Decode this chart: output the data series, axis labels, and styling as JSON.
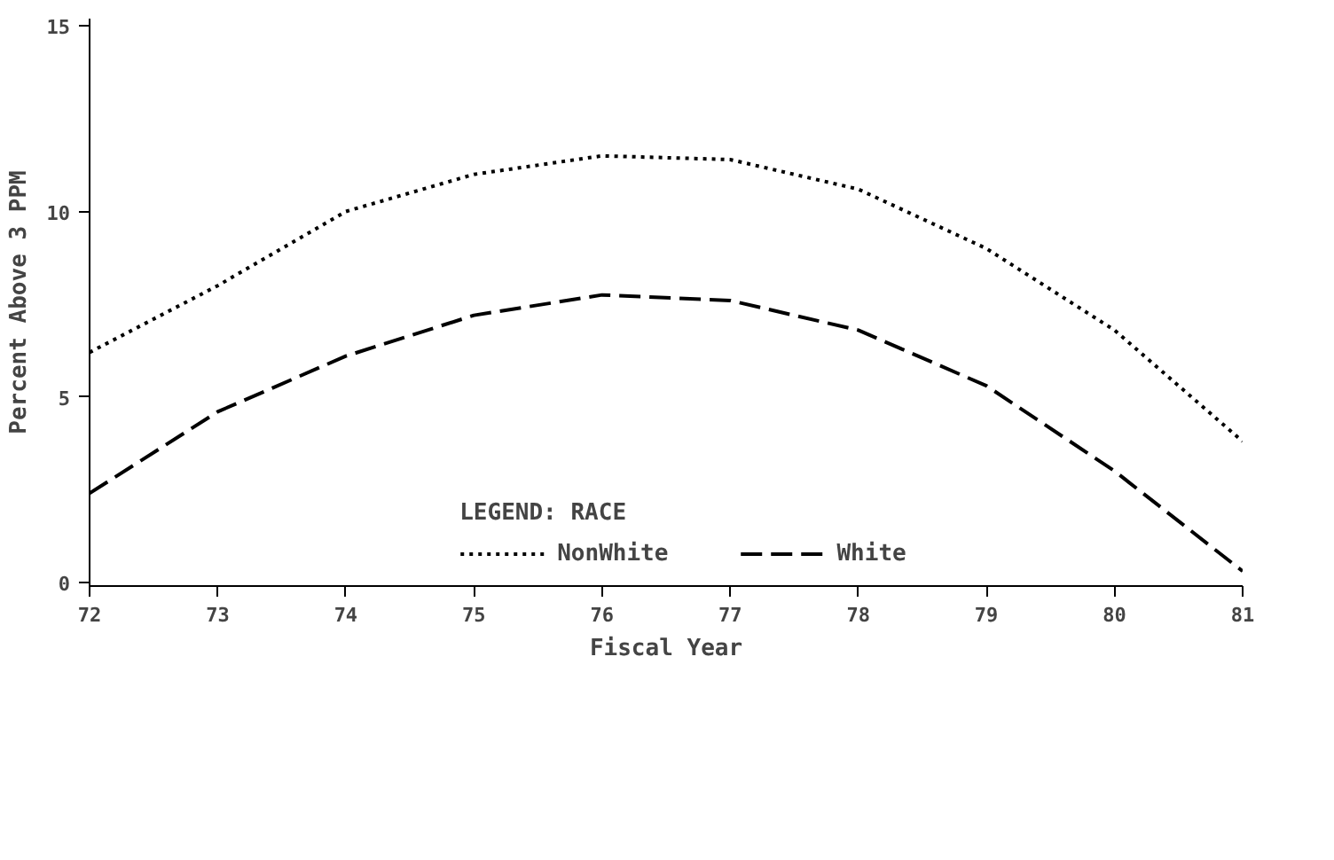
{
  "chart_data": {
    "type": "line",
    "xlabel": "Fiscal Year",
    "ylabel": "Percent Above 3 PPM",
    "legend_title": "LEGEND: RACE",
    "x": [
      72,
      73,
      74,
      75,
      76,
      77,
      78,
      79,
      80,
      81
    ],
    "series": [
      {
        "name": "NonWhite",
        "color": "#000000",
        "line_style": "dotted",
        "values": [
          6.2,
          8.0,
          10.0,
          11.0,
          11.5,
          11.4,
          10.6,
          9.0,
          6.8,
          3.8
        ]
      },
      {
        "name": "White",
        "color": "#000000",
        "line_style": "dashed",
        "values": [
          2.4,
          4.6,
          6.1,
          7.2,
          7.75,
          7.6,
          6.8,
          5.3,
          3.0,
          0.3
        ]
      }
    ],
    "xlim": [
      72,
      81
    ],
    "ylim": [
      -0.1,
      15.2
    ],
    "xticks": [
      72,
      73,
      74,
      75,
      76,
      77,
      78,
      79,
      80,
      81
    ],
    "yticks": [
      0,
      5,
      10,
      15
    ],
    "grid": false,
    "legend": "bottom",
    "marker": "none"
  }
}
